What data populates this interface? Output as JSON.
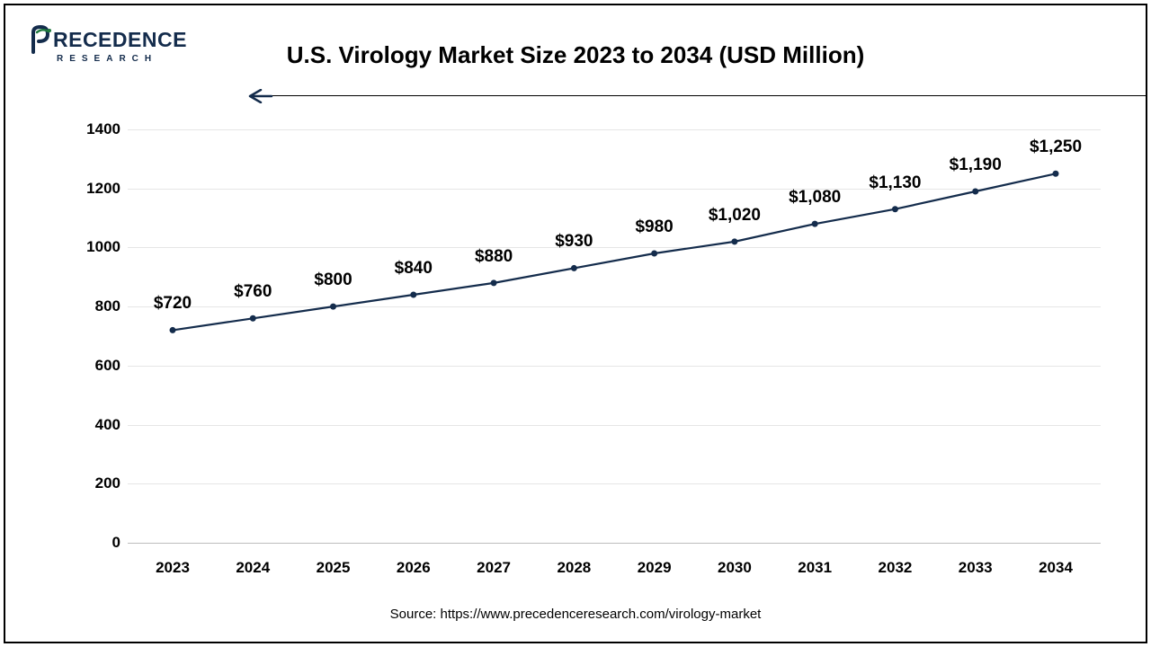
{
  "logo": {
    "brand_top": "RECEDENCE",
    "brand_bottom": "RESEARCH",
    "icon_color": "#142c4c",
    "accent_color": "#1f7a3e"
  },
  "title": "U.S. Virology Market Size 2023 to 2034 (USD Million)",
  "source": "Source: https://www.precedenceresearch.com/virology-market",
  "decor_arrow": {
    "color": "#142c4c"
  },
  "chart": {
    "type": "line",
    "x_labels": [
      "2023",
      "2024",
      "2025",
      "2026",
      "2027",
      "2028",
      "2029",
      "2030",
      "2031",
      "2032",
      "2033",
      "2034"
    ],
    "values": [
      720,
      760,
      800,
      840,
      880,
      930,
      980,
      1020,
      1080,
      1130,
      1190,
      1250
    ],
    "value_labels": [
      "$720",
      "$760",
      "$800",
      "$840",
      "$880",
      "$930",
      "$980",
      "$1,020",
      "$1,080",
      "$1,130",
      "$1,190",
      "$1,250"
    ],
    "ylim": [
      0,
      1400
    ],
    "ytick_step": 200,
    "line_color": "#142c4c",
    "marker_color": "#142c4c",
    "marker_radius": 3.5,
    "line_width": 2.2,
    "grid_color": "#e6e6e6",
    "axis_color": "#bdbdbd",
    "background": "#ffffff",
    "label_fontsize": 17,
    "data_label_fontsize": 19,
    "title_fontsize": 26,
    "data_label_y_offset": -18
  }
}
